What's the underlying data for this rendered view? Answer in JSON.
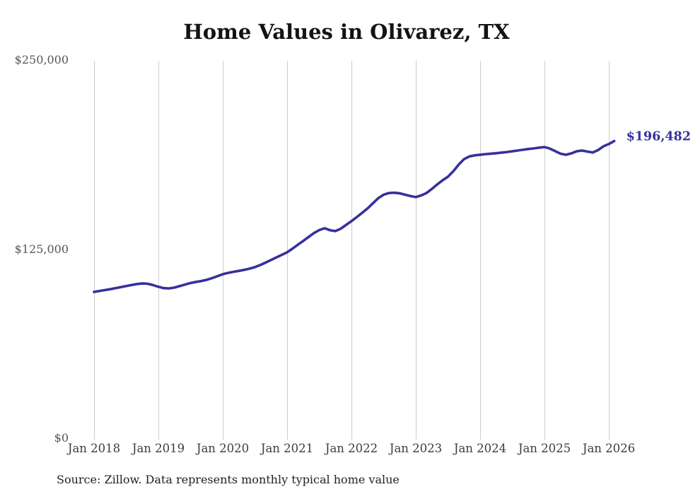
{
  "title": "Home Values in Olivarez, TX",
  "end_label": "$196,482",
  "source_note": "Source: Zillow. Data represents monthly typical home value",
  "colors": {
    "line": "#37309b",
    "end_label": "#37309b",
    "grid": "#cccccc",
    "title_text": "#131313",
    "y_tick_text": "#565656",
    "x_tick_text": "#3d3d3d",
    "background": "#ffffff"
  },
  "chart_data": {
    "type": "line",
    "title": "Home Values in Olivarez, TX",
    "xlabel": "",
    "ylabel": "",
    "x_start": "2018-01",
    "x_end": "2026-02",
    "frequency": "monthly",
    "x_tick_labels": [
      "Jan 2018",
      "Jan 2019",
      "Jan 2020",
      "Jan 2021",
      "Jan 2022",
      "Jan 2023",
      "Jan 2024",
      "Jan 2025",
      "Jan 2026"
    ],
    "y_ticks": [
      {
        "label": "$0",
        "value": 0
      },
      {
        "label": "$125,000",
        "value": 125000
      },
      {
        "label": "$250,000",
        "value": 250000
      }
    ],
    "ylim": [
      0,
      250000
    ],
    "grid": "vertical-only",
    "legend": "none",
    "final_value": 196482,
    "final_value_label": "$196,482",
    "series": [
      {
        "name": "Typical home value",
        "values": [
          96700,
          97300,
          97900,
          98500,
          99200,
          99900,
          100600,
          101300,
          101900,
          102300,
          102100,
          101200,
          100100,
          99200,
          99000,
          99600,
          100600,
          101600,
          102600,
          103300,
          103900,
          104700,
          105800,
          107100,
          108400,
          109300,
          110000,
          110600,
          111300,
          112100,
          113100,
          114500,
          116100,
          117800,
          119500,
          121200,
          122900,
          125300,
          127900,
          130400,
          133000,
          135600,
          137600,
          138800,
          137500,
          136900,
          138500,
          141000,
          143500,
          146200,
          149000,
          151900,
          155300,
          158700,
          161000,
          162100,
          162300,
          161900,
          161000,
          160100,
          159400,
          160500,
          162100,
          164800,
          167800,
          170500,
          172900,
          176500,
          180900,
          184500,
          186300,
          187000,
          187400,
          187800,
          188100,
          188400,
          188800,
          189200,
          189700,
          190200,
          190700,
          191200,
          191600,
          192100,
          192500,
          191500,
          189800,
          188100,
          187400,
          188300,
          189700,
          190200,
          189500,
          188900,
          190500,
          193000,
          194500,
          196482
        ]
      }
    ]
  }
}
